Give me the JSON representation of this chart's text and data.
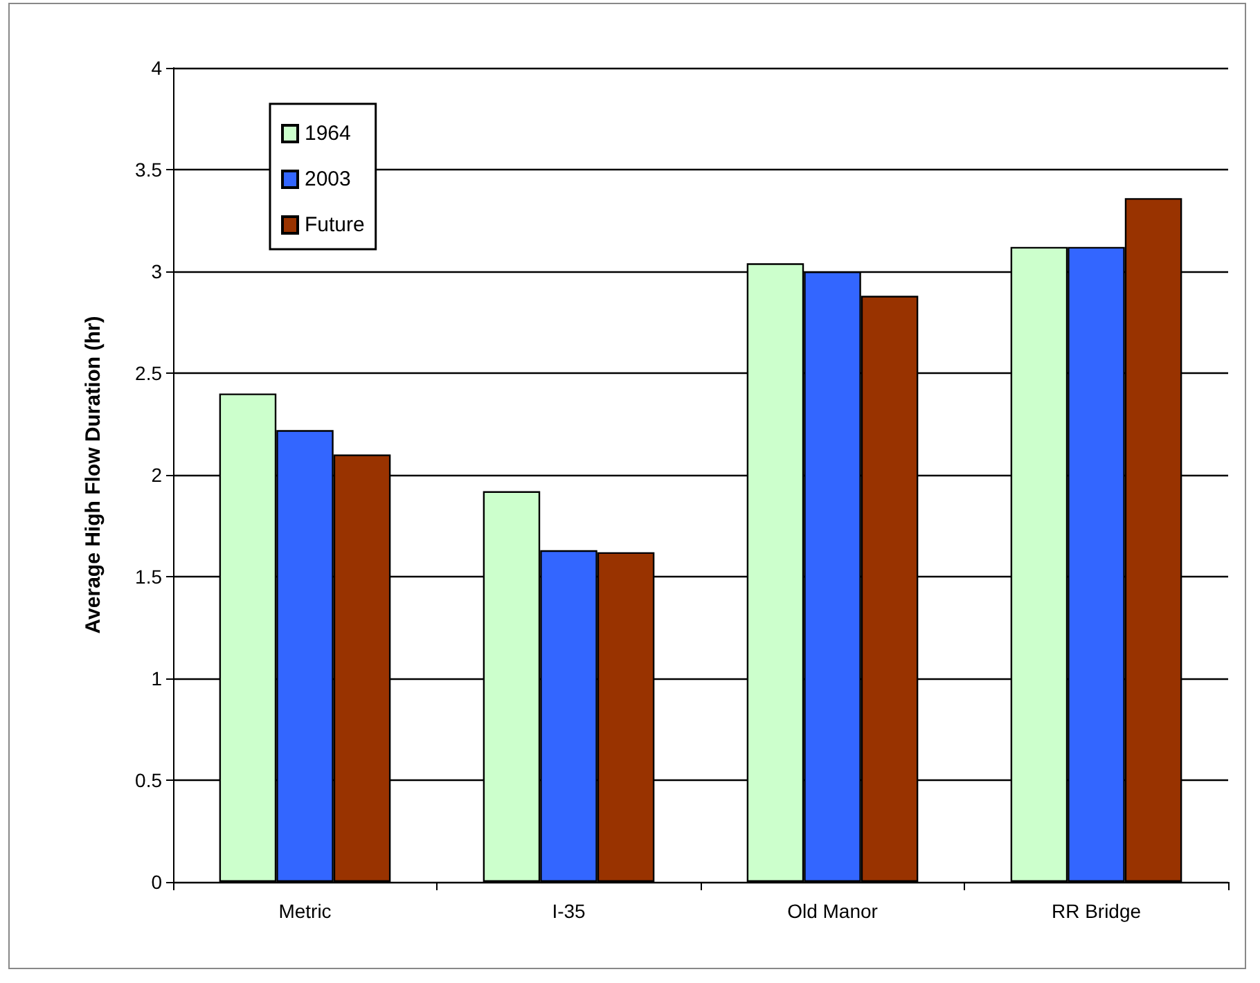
{
  "chart_data": {
    "type": "bar",
    "ylabel": "Average High Flow Duration (hr)",
    "categories": [
      "Metric",
      "I-35",
      "Old Manor",
      "RR Bridge"
    ],
    "series": [
      {
        "name": "1964",
        "color": "#ccffcc",
        "values": [
          2.4,
          1.92,
          3.04,
          3.12
        ]
      },
      {
        "name": "2003",
        "color": "#3366ff",
        "values": [
          2.22,
          1.63,
          3.0,
          3.12
        ]
      },
      {
        "name": "Future",
        "color": "#993300",
        "values": [
          2.1,
          1.62,
          2.88,
          3.36
        ]
      }
    ],
    "ylim": [
      0,
      4
    ],
    "yticks": [
      0,
      0.5,
      1,
      1.5,
      2,
      2.5,
      3,
      3.5,
      4
    ],
    "grid": "y",
    "legend": "top left"
  }
}
